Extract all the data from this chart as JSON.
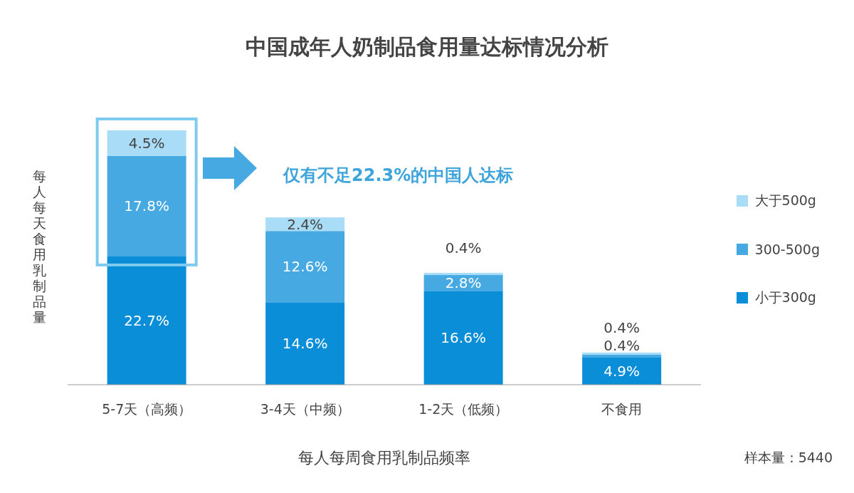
{
  "chart_data": {
    "type": "bar",
    "title": "中国成年人奶制品食用量达标情况分析",
    "xlabel": "每人每周食用乳制品频率",
    "ylabel": "每人每天食用乳制品量",
    "categories": [
      "5-7天（高频）",
      "3-4天（中频）",
      "1-2天（低频）",
      "不食用"
    ],
    "stacked": true,
    "legend": "right",
    "series": [
      {
        "name": "小于300g",
        "color": "#0b8ed8",
        "values": [
          22.7,
          14.6,
          16.6,
          4.9
        ],
        "value_labels": [
          "22.7%",
          "14.6%",
          "16.6%",
          "4.9%"
        ]
      },
      {
        "name": "300-500g",
        "color": "#47a9e2",
        "values": [
          17.8,
          12.6,
          2.8,
          0.4
        ],
        "value_labels": [
          "17.8%",
          "12.6%",
          "2.8%",
          "0.4%"
        ]
      },
      {
        "name": "大于500g",
        "color": "#a9dcf6",
        "values": [
          4.5,
          2.4,
          0.4,
          0.4
        ],
        "value_labels": [
          "4.5%",
          "2.4%",
          "0.4%",
          "0.4%"
        ]
      }
    ],
    "annotations": [
      "仅有不足22.3%的中国人达标",
      "样本量：5440"
    ]
  }
}
